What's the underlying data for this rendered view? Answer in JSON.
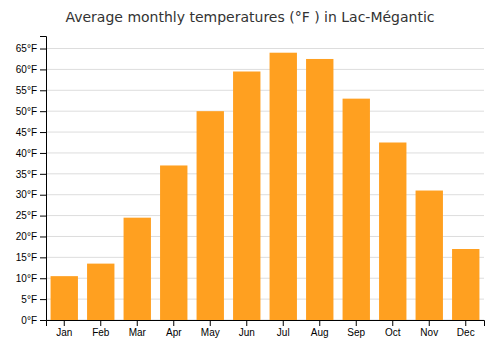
{
  "chart_data": {
    "type": "bar",
    "title": "Average monthly temperatures (°F ) in Lac-Mégantic",
    "categories": [
      "Jan",
      "Feb",
      "Mar",
      "Apr",
      "May",
      "Jun",
      "Jul",
      "Aug",
      "Sep",
      "Oct",
      "Nov",
      "Dec"
    ],
    "values": [
      10.5,
      13.5,
      24.5,
      37,
      50,
      59.5,
      64,
      62.5,
      53,
      42.5,
      31,
      17
    ],
    "color": "#FFA020",
    "ylim": [
      0,
      68
    ],
    "yticks": [
      {
        "value": 0,
        "label": "0°F"
      },
      {
        "value": 5,
        "label": "5°F"
      },
      {
        "value": 10,
        "label": "10°F"
      },
      {
        "value": 15,
        "label": "15°F"
      },
      {
        "value": 20,
        "label": "20°F"
      },
      {
        "value": 25,
        "label": "25°F"
      },
      {
        "value": 30,
        "label": "30°F"
      },
      {
        "value": 35,
        "label": "35°F"
      },
      {
        "value": 40,
        "label": "40°F"
      },
      {
        "value": 45,
        "label": "45°F"
      },
      {
        "value": 50,
        "label": "50°F"
      },
      {
        "value": 55,
        "label": "55°F"
      },
      {
        "value": 60,
        "label": "60°F"
      },
      {
        "value": 65,
        "label": "65°F"
      }
    ],
    "grid": true
  }
}
